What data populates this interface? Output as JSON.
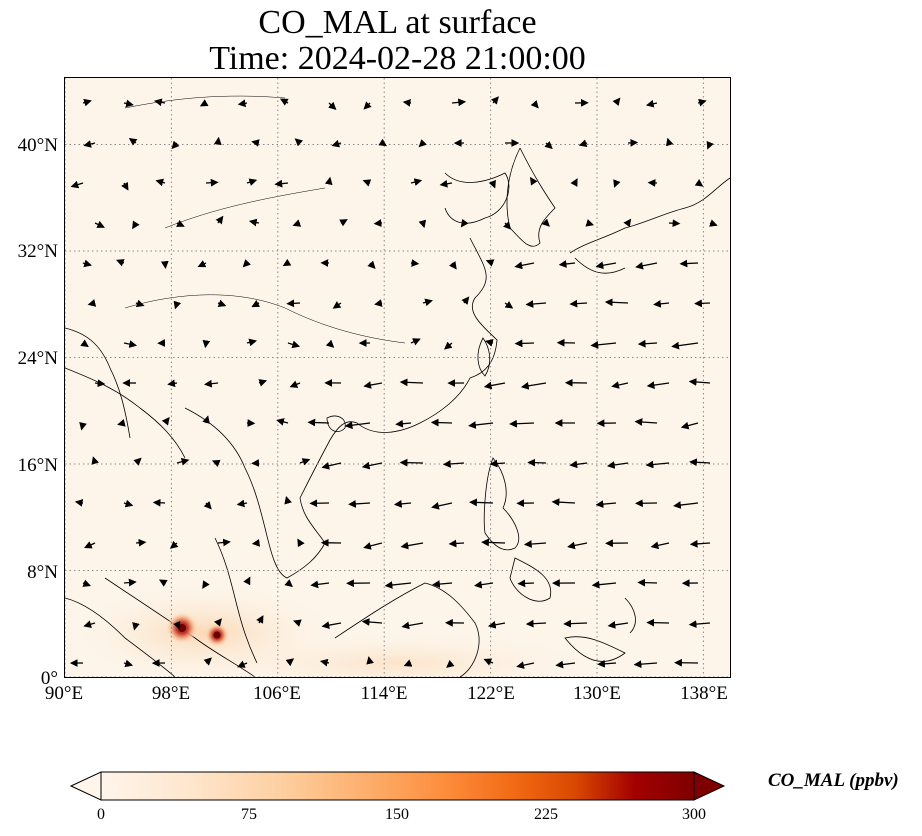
{
  "title": {
    "line1": "CO_MAL at surface",
    "line2": "Time: 2024-02-28 21:00:00"
  },
  "map": {
    "lon_range": [
      90,
      140
    ],
    "lat_range": [
      0,
      45
    ],
    "lat_labels": [
      "0°",
      "8°N",
      "16°N",
      "24°N",
      "32°N",
      "40°N"
    ],
    "lat_values": [
      0,
      8,
      16,
      24,
      32,
      40
    ],
    "lon_labels": [
      "90°E",
      "98°E",
      "106°E",
      "114°E",
      "122°E",
      "130°E",
      "138°E"
    ],
    "lon_values": [
      90,
      98,
      106,
      114,
      122,
      130,
      138
    ],
    "gridlines": "dotted",
    "background_color": "#fdf5ea",
    "wind_vectors": "northeasterly monsoon flow over South China Sea; weaker variable winds over inland Asia",
    "hotspots": [
      {
        "lon": 98.5,
        "lat": 3.6,
        "level": "high"
      },
      {
        "lon": 101.3,
        "lat": 3.2,
        "level": "high"
      }
    ]
  },
  "colorbar": {
    "label": "CO_MAL (ppbv)",
    "ticks": [
      "0",
      "75",
      "150",
      "225",
      "300"
    ],
    "tick_values": [
      0,
      75,
      150,
      225,
      300
    ],
    "range": [
      0,
      300
    ],
    "colormap": [
      "#fff5eb",
      "#fee6ce",
      "#fdd0a2",
      "#fdae6b",
      "#fd8d3c",
      "#f16913",
      "#d94801",
      "#a30000",
      "#7f0000"
    ],
    "extend": "both"
  }
}
